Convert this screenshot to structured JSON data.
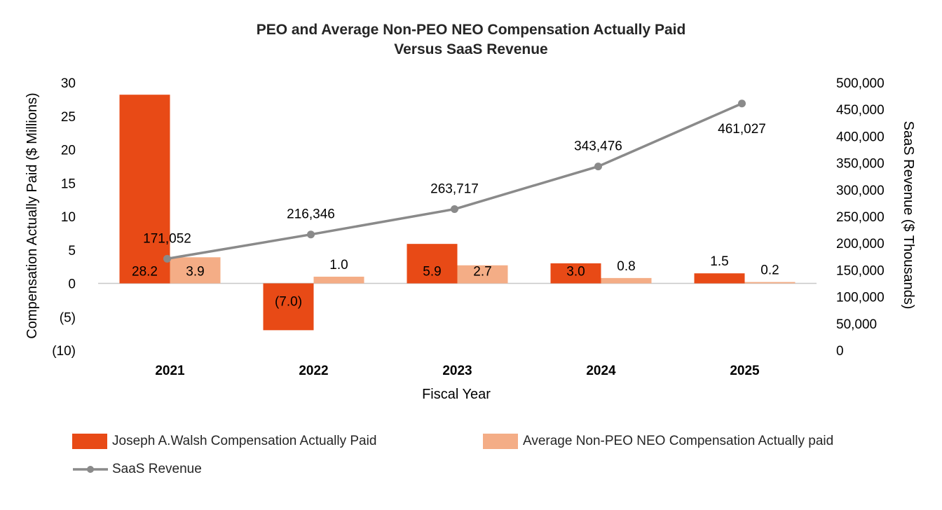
{
  "chart_data": {
    "type": "bar",
    "title": [
      "PEO and Average Non-PEO NEO Compensation Actually Paid",
      "Versus SaaS Revenue"
    ],
    "categories": [
      "2021",
      "2022",
      "2023",
      "2024",
      "2025"
    ],
    "xlabel": "Fiscal Year",
    "ylabel": "Compensation Actually Paid ($ Millions)",
    "ylabel_right": "SaaS Revenue ($ Thousands)",
    "ylim": [
      -10,
      30
    ],
    "yticks": [
      30,
      25,
      20,
      15,
      10,
      5,
      0,
      -5,
      -10
    ],
    "ytick_labels": [
      "30",
      "25",
      "20",
      "15",
      "10",
      "5",
      "0",
      "(5)",
      "(10)"
    ],
    "ylim_right": [
      0,
      500000
    ],
    "yticks_right": [
      500000,
      450000,
      400000,
      350000,
      300000,
      250000,
      200000,
      150000,
      100000,
      50000,
      0
    ],
    "ytick_labels_right": [
      "500,000",
      "450,000",
      "400,000",
      "350,000",
      "300,000",
      "250,000",
      "200,000",
      "150,000",
      "100,000",
      "50,000",
      "0"
    ],
    "series": [
      {
        "name": "Joseph A.Walsh Compensation Actually Paid",
        "kind": "bar",
        "axis": "left",
        "color": "#e84a16",
        "values": [
          28.2,
          -7.0,
          5.9,
          3.0,
          1.5
        ],
        "labels": [
          "28.2",
          "(7.0)",
          "5.9",
          "3.0",
          "1.5"
        ]
      },
      {
        "name": "Average Non-PEO NEO Compensation Actually paid",
        "kind": "bar",
        "axis": "left",
        "color": "#f4ad86",
        "values": [
          3.9,
          1.0,
          2.7,
          0.8,
          0.2
        ],
        "labels": [
          "3.9",
          "1.0",
          "2.7",
          "0.8",
          "0.2"
        ]
      },
      {
        "name": "SaaS Revenue",
        "kind": "line",
        "axis": "right",
        "color": "#8a8a8a",
        "values": [
          171052,
          216346,
          263717,
          343476,
          461027
        ],
        "labels": [
          "171,052",
          "216,346",
          "263,717",
          "343,476",
          "461,027"
        ]
      }
    ],
    "legend_position": "bottom",
    "grid": false
  }
}
